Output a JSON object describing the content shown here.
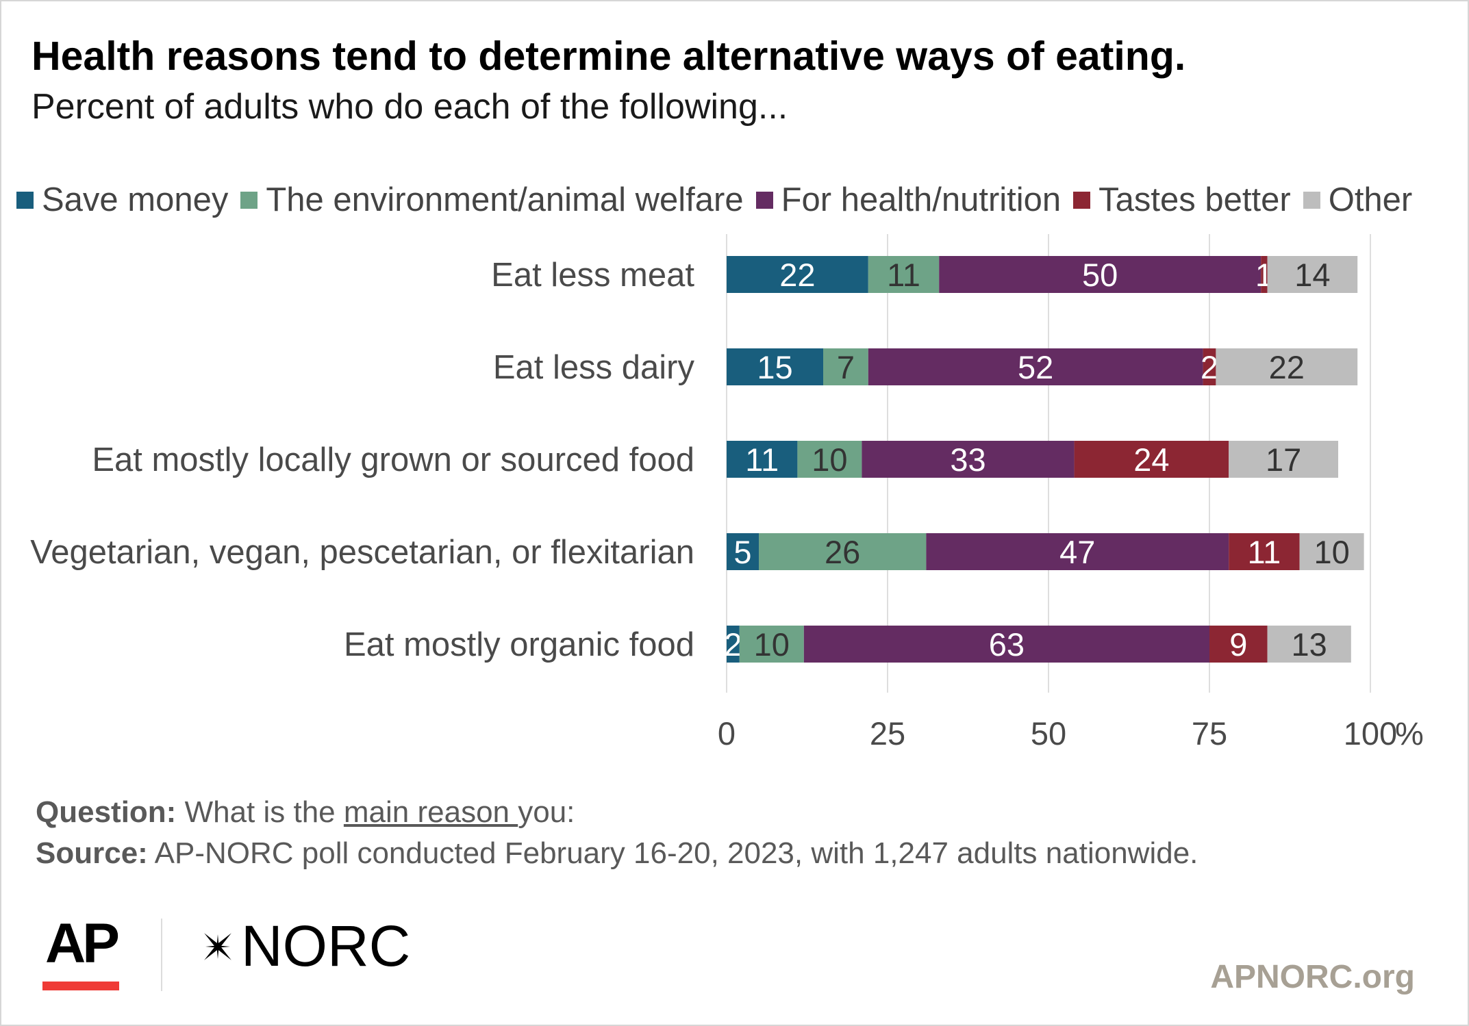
{
  "title": "Health reasons tend to determine alternative ways of eating.",
  "subtitle": "Percent of adults who do each of the following...",
  "footer": {
    "question_label": "Question:",
    "question_prefix": "What is the ",
    "question_emph": "main reason ",
    "question_suffix": "you:",
    "source_label": "Source:",
    "source_text": "AP-NORC poll conducted February 16-20, 2023, with 1,247 adults nationwide.",
    "logo_ap": "AP",
    "logo_norc": "NORC",
    "website": "APNORC.org"
  },
  "chart_data": {
    "type": "bar",
    "orientation": "horizontal",
    "stacked": true,
    "categories": [
      "Eat less meat",
      "Eat  less dairy",
      "Eat mostly locally grown or sourced food",
      "Vegetarian, vegan, pescetarian, or flexitarian",
      "Eat mostly organic food"
    ],
    "series": [
      {
        "name": "Save money",
        "color": "#195e7d",
        "label_color": "#ffffff",
        "values": [
          22,
          15,
          11,
          5,
          2
        ]
      },
      {
        "name": "The environment/animal welfare",
        "color": "#6ea387",
        "label_color": "#333333",
        "values": [
          11,
          7,
          10,
          26,
          10
        ]
      },
      {
        "name": "For health/nutrition",
        "color": "#642c62",
        "label_color": "#ffffff",
        "values": [
          50,
          52,
          33,
          47,
          63
        ]
      },
      {
        "name": "Tastes better",
        "color": "#8c2633",
        "label_color": "#ffffff",
        "values": [
          1,
          2,
          24,
          11,
          9
        ]
      },
      {
        "name": "Other",
        "color": "#bdbdbd",
        "label_color": "#333333",
        "values": [
          14,
          22,
          17,
          10,
          13
        ]
      }
    ],
    "xlim": [
      0,
      100
    ],
    "xticks": [
      0,
      25,
      50,
      75,
      100
    ],
    "unit": "%",
    "grid": true,
    "legend": "top"
  }
}
